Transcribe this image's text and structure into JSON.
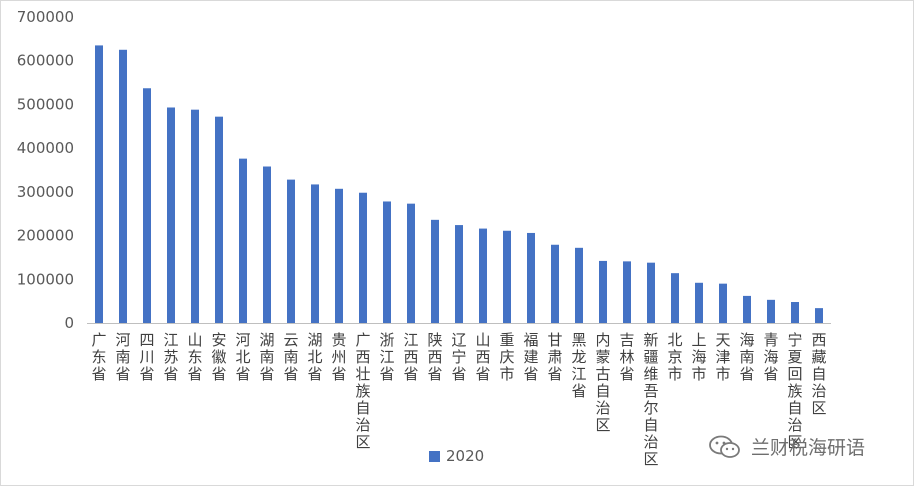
{
  "chart_data": {
    "type": "bar",
    "title": "",
    "xlabel": "",
    "ylabel": "",
    "ylim": [
      0,
      700000
    ],
    "yticks": [
      "0",
      "100000",
      "200000",
      "300000",
      "400000",
      "500000",
      "600000",
      "700000"
    ],
    "categories": [
      "广东省",
      "河南省",
      "四川省",
      "江苏省",
      "山东省",
      "安徽省",
      "河北省",
      "湖南省",
      "云南省",
      "湖北省",
      "贵州省",
      "广西壮族自治区",
      "浙江省",
      "江西省",
      "陕西省",
      "辽宁省",
      "山西省",
      "重庆市",
      "福建省",
      "甘肃省",
      "黑龙江省",
      "内蒙古自治区",
      "吉林省",
      "新疆维吾尔自治区",
      "北京市",
      "上海市",
      "天津市",
      "海南省",
      "青海省",
      "宁夏回族自治区",
      "西藏自治区"
    ],
    "series": [
      {
        "name": "2020",
        "color": "#4472c4",
        "values": [
          635000,
          625000,
          537000,
          493000,
          488000,
          472000,
          376000,
          358000,
          328000,
          317000,
          307000,
          298000,
          278000,
          273000,
          236000,
          224000,
          216000,
          211000,
          206000,
          179000,
          172000,
          142000,
          141000,
          138000,
          114000,
          92000,
          90000,
          62000,
          53000,
          48000,
          34000
        ]
      }
    ],
    "grid": false,
    "legend": "bottom"
  },
  "watermark": {
    "text": "兰财税海研语",
    "icon": "wechat-icon"
  }
}
